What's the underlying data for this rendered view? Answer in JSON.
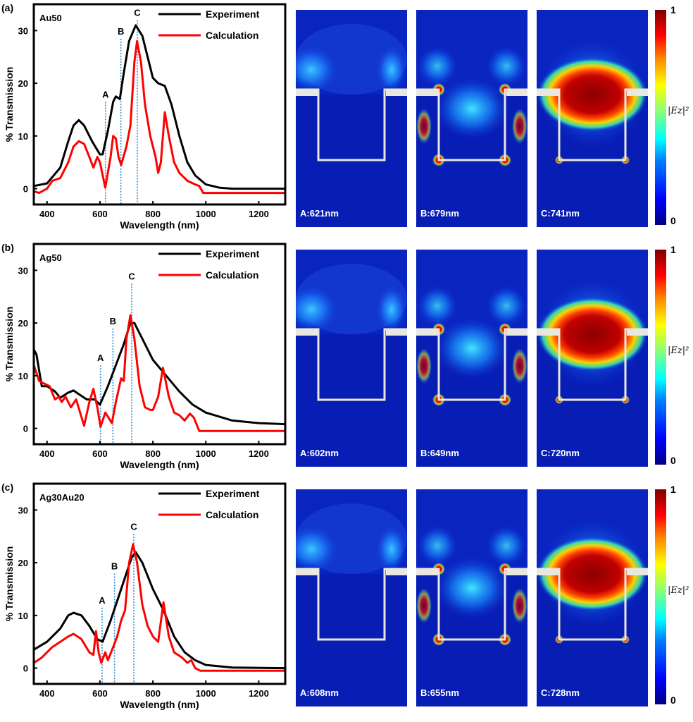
{
  "chart_data": [
    {
      "type": "line",
      "panel_label": "(a)",
      "sample": "Au50",
      "xlabel": "Wavelength (nm)",
      "ylabel": "% Transmission",
      "xlim": [
        350,
        1300
      ],
      "ylim": [
        -3,
        35
      ],
      "xticks": [
        400,
        600,
        800,
        1000,
        1200
      ],
      "yticks": [
        0,
        10,
        20,
        30
      ],
      "legend": "top-right",
      "series": [
        {
          "name": "Experiment",
          "color": "#000000",
          "points": [
            [
              350,
              0.5
            ],
            [
              400,
              1
            ],
            [
              450,
              4
            ],
            [
              480,
              9
            ],
            [
              500,
              12
            ],
            [
              520,
              13
            ],
            [
              540,
              12
            ],
            [
              570,
              9
            ],
            [
              600,
              6.5
            ],
            [
              610,
              6.5
            ],
            [
              630,
              11
            ],
            [
              650,
              16.5
            ],
            [
              660,
              17.5
            ],
            [
              675,
              17
            ],
            [
              690,
              22
            ],
            [
              710,
              28
            ],
            [
              735,
              31
            ],
            [
              760,
              29
            ],
            [
              780,
              25
            ],
            [
              800,
              21
            ],
            [
              820,
              20
            ],
            [
              845,
              19.5
            ],
            [
              870,
              16
            ],
            [
              900,
              10
            ],
            [
              930,
              5
            ],
            [
              960,
              2.5
            ],
            [
              1000,
              0.8
            ],
            [
              1050,
              0.2
            ],
            [
              1100,
              0
            ],
            [
              1300,
              0
            ]
          ]
        },
        {
          "name": "Calculation",
          "color": "#ff0000",
          "points": [
            [
              350,
              -0.5
            ],
            [
              370,
              -0.8
            ],
            [
              400,
              0
            ],
            [
              420,
              1.5
            ],
            [
              450,
              2
            ],
            [
              480,
              5
            ],
            [
              500,
              8
            ],
            [
              520,
              9
            ],
            [
              540,
              8.5
            ],
            [
              560,
              6
            ],
            [
              575,
              4
            ],
            [
              590,
              6
            ],
            [
              600,
              5
            ],
            [
              620,
              0.2
            ],
            [
              640,
              6
            ],
            [
              650,
              10
            ],
            [
              660,
              9.5
            ],
            [
              670,
              6
            ],
            [
              680,
              4.5
            ],
            [
              700,
              8
            ],
            [
              715,
              12
            ],
            [
              730,
              24
            ],
            [
              740,
              28
            ],
            [
              755,
              24
            ],
            [
              770,
              16
            ],
            [
              790,
              10
            ],
            [
              810,
              6
            ],
            [
              820,
              3
            ],
            [
              830,
              5
            ],
            [
              845,
              14.5
            ],
            [
              860,
              10
            ],
            [
              880,
              5
            ],
            [
              900,
              3
            ],
            [
              930,
              1.5
            ],
            [
              960,
              0.8
            ],
            [
              975,
              0.5
            ],
            [
              990,
              -0.8
            ],
            [
              1300,
              -0.8
            ]
          ]
        }
      ],
      "markers": [
        {
          "label": "A",
          "x": 621,
          "label_y": 17
        },
        {
          "label": "B",
          "x": 679,
          "label_y": 29
        },
        {
          "label": "C",
          "x": 741,
          "label_y": 32.5
        }
      ]
    },
    {
      "type": "line",
      "panel_label": "(b)",
      "sample": "Ag50",
      "xlabel": "Wavelength (nm)",
      "ylabel": "% Transmission",
      "xlim": [
        350,
        1300
      ],
      "ylim": [
        -3,
        35
      ],
      "xticks": [
        400,
        600,
        800,
        1000,
        1200
      ],
      "yticks": [
        0,
        10,
        20,
        30
      ],
      "legend": "top-right",
      "series": [
        {
          "name": "Experiment",
          "color": "#000000",
          "points": [
            [
              350,
              15
            ],
            [
              360,
              14
            ],
            [
              380,
              8
            ],
            [
              400,
              8
            ],
            [
              430,
              7
            ],
            [
              450,
              5.8
            ],
            [
              480,
              6.8
            ],
            [
              500,
              7.2
            ],
            [
              520,
              6.5
            ],
            [
              550,
              5.5
            ],
            [
              580,
              5.5
            ],
            [
              600,
              4.5
            ],
            [
              630,
              8
            ],
            [
              660,
              12
            ],
            [
              690,
              16
            ],
            [
              715,
              20
            ],
            [
              730,
              20
            ],
            [
              760,
              17
            ],
            [
              800,
              13
            ],
            [
              850,
              10
            ],
            [
              900,
              7
            ],
            [
              950,
              4.5
            ],
            [
              1000,
              3
            ],
            [
              1100,
              1.5
            ],
            [
              1200,
              1
            ],
            [
              1300,
              0.8
            ]
          ]
        },
        {
          "name": "Calculation",
          "color": "#ff0000",
          "points": [
            [
              350,
              12
            ],
            [
              370,
              9
            ],
            [
              390,
              8.5
            ],
            [
              410,
              8
            ],
            [
              430,
              5.5
            ],
            [
              445,
              6
            ],
            [
              455,
              5
            ],
            [
              470,
              6
            ],
            [
              490,
              4
            ],
            [
              510,
              5.5
            ],
            [
              540,
              0.5
            ],
            [
              560,
              5
            ],
            [
              575,
              7.5
            ],
            [
              590,
              4
            ],
            [
              602,
              0.3
            ],
            [
              620,
              3
            ],
            [
              645,
              1
            ],
            [
              660,
              5
            ],
            [
              680,
              9.5
            ],
            [
              690,
              9
            ],
            [
              700,
              17
            ],
            [
              715,
              21.5
            ],
            [
              730,
              17
            ],
            [
              750,
              8
            ],
            [
              770,
              4
            ],
            [
              790,
              3.5
            ],
            [
              800,
              3.5
            ],
            [
              820,
              6
            ],
            [
              838,
              11.5
            ],
            [
              860,
              6
            ],
            [
              880,
              3
            ],
            [
              900,
              2.5
            ],
            [
              920,
              1.5
            ],
            [
              940,
              2.8
            ],
            [
              955,
              2
            ],
            [
              975,
              -0.5
            ],
            [
              1300,
              -0.5
            ]
          ]
        }
      ],
      "markers": [
        {
          "label": "A",
          "x": 602,
          "label_y": 12.5
        },
        {
          "label": "B",
          "x": 649,
          "label_y": 19.5
        },
        {
          "label": "C",
          "x": 720,
          "label_y": 28
        }
      ]
    },
    {
      "type": "line",
      "panel_label": "(c)",
      "sample": "Ag30Au20",
      "xlabel": "Wavelength (nm)",
      "ylabel": "% Transmission",
      "xlim": [
        350,
        1300
      ],
      "ylim": [
        -3,
        35
      ],
      "xticks": [
        400,
        600,
        800,
        1000,
        1200
      ],
      "yticks": [
        0,
        10,
        20,
        30
      ],
      "legend": "top-right",
      "series": [
        {
          "name": "Experiment",
          "color": "#000000",
          "points": [
            [
              350,
              3.5
            ],
            [
              400,
              5
            ],
            [
              450,
              7.5
            ],
            [
              480,
              10
            ],
            [
              500,
              10.5
            ],
            [
              530,
              10
            ],
            [
              560,
              8
            ],
            [
              590,
              5.5
            ],
            [
              610,
              5
            ],
            [
              640,
              9
            ],
            [
              680,
              15
            ],
            [
              720,
              21
            ],
            [
              735,
              22
            ],
            [
              760,
              20
            ],
            [
              800,
              15
            ],
            [
              840,
              11
            ],
            [
              880,
              6
            ],
            [
              920,
              3
            ],
            [
              960,
              1.5
            ],
            [
              1000,
              0.6
            ],
            [
              1100,
              0.1
            ],
            [
              1300,
              0
            ]
          ]
        },
        {
          "name": "Calculation",
          "color": "#ff0000",
          "points": [
            [
              350,
              1
            ],
            [
              380,
              2
            ],
            [
              420,
              4
            ],
            [
              450,
              5
            ],
            [
              480,
              6
            ],
            [
              500,
              6.5
            ],
            [
              530,
              5.5
            ],
            [
              560,
              3
            ],
            [
              575,
              2.5
            ],
            [
              585,
              7
            ],
            [
              595,
              3
            ],
            [
              605,
              1
            ],
            [
              620,
              3
            ],
            [
              630,
              1.5
            ],
            [
              650,
              4
            ],
            [
              665,
              6
            ],
            [
              680,
              9
            ],
            [
              695,
              11
            ],
            [
              710,
              20
            ],
            [
              725,
              23.5
            ],
            [
              740,
              20
            ],
            [
              760,
              12
            ],
            [
              780,
              8
            ],
            [
              800,
              6
            ],
            [
              820,
              5
            ],
            [
              840,
              12.5
            ],
            [
              860,
              6
            ],
            [
              880,
              3
            ],
            [
              910,
              2
            ],
            [
              930,
              1
            ],
            [
              945,
              1.5
            ],
            [
              960,
              0
            ],
            [
              980,
              -0.5
            ],
            [
              1300,
              -0.5
            ]
          ]
        }
      ],
      "markers": [
        {
          "label": "A",
          "x": 608,
          "label_y": 12
        },
        {
          "label": "B",
          "x": 655,
          "label_y": 18.5
        },
        {
          "label": "C",
          "x": 728,
          "label_y": 26
        }
      ]
    }
  ],
  "field_maps": [
    {
      "labels": [
        "A:621nm",
        "B:679nm",
        "C:741nm"
      ]
    },
    {
      "labels": [
        "A:602nm",
        "B:649nm",
        "C:720nm"
      ]
    },
    {
      "labels": [
        "A:608nm",
        "B:655nm",
        "C:728nm"
      ]
    }
  ],
  "colorbar": {
    "max": "1",
    "min": "0",
    "label": "|Ez|²"
  }
}
